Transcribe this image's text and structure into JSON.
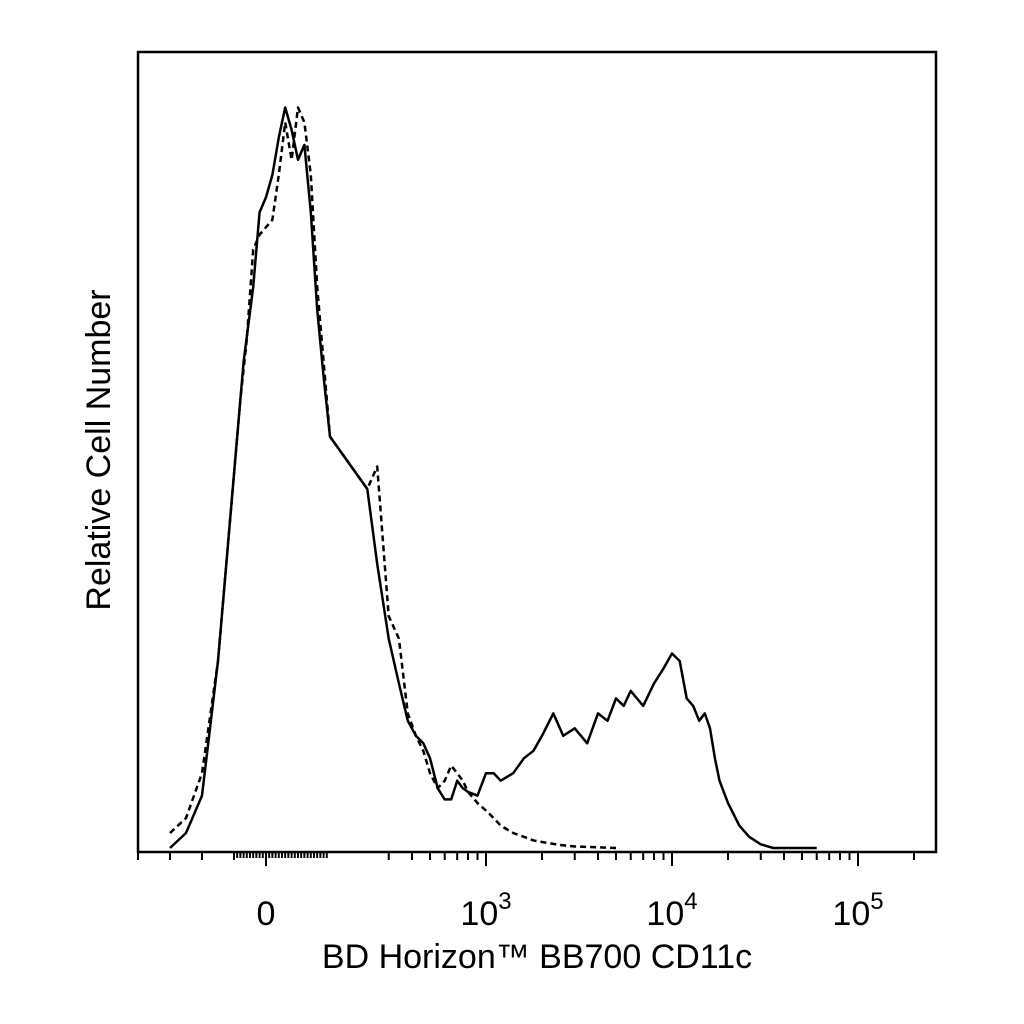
{
  "chart_data": {
    "type": "line",
    "title": "",
    "xlabel": "BD Horizon™ BB700 CD11c",
    "ylabel": "Relative Cell Number",
    "x_scale": "biexponential",
    "xlim": [
      -500,
      200000
    ],
    "ylim": [
      0,
      1
    ],
    "grid": false,
    "legend": "none",
    "x_ticks": [
      {
        "value": 0,
        "base": "0",
        "exp": ""
      },
      {
        "value": 1000,
        "base": "10",
        "exp": "3"
      },
      {
        "value": 10000,
        "base": "10",
        "exp": "4"
      },
      {
        "value": 100000,
        "base": "10",
        "exp": "5"
      }
    ],
    "series": [
      {
        "style": "solid",
        "color": "#000000",
        "x": [
          -300,
          -250,
          -200,
          -150,
          -100,
          -70,
          -40,
          -20,
          0,
          20,
          40,
          60,
          80,
          100,
          120,
          140,
          160,
          180,
          200,
          230,
          260,
          300,
          340,
          380,
          420,
          460,
          500,
          550,
          600,
          650,
          700,
          750,
          800,
          900,
          1000,
          1100,
          1200,
          1400,
          1600,
          1800,
          2000,
          2300,
          2600,
          3000,
          3500,
          4000,
          4500,
          5000,
          5500,
          6000,
          7000,
          8000,
          9000,
          10000,
          11000,
          12000,
          13000,
          14000,
          15000,
          16000,
          17000,
          18000,
          20000,
          23000,
          26000,
          30000,
          35000,
          40000,
          50000,
          60000
        ],
        "y": [
          0,
          0.02,
          0.07,
          0.25,
          0.5,
          0.65,
          0.75,
          0.85,
          0.87,
          0.9,
          0.95,
          0.99,
          0.96,
          0.92,
          0.94,
          0.85,
          0.72,
          0.63,
          0.55,
          0.48,
          0.38,
          0.28,
          0.22,
          0.17,
          0.15,
          0.14,
          0.12,
          0.08,
          0.065,
          0.065,
          0.09,
          0.08,
          0.075,
          0.07,
          0.1,
          0.1,
          0.09,
          0.1,
          0.12,
          0.13,
          0.15,
          0.18,
          0.15,
          0.16,
          0.14,
          0.18,
          0.17,
          0.2,
          0.19,
          0.21,
          0.19,
          0.22,
          0.24,
          0.26,
          0.25,
          0.2,
          0.19,
          0.17,
          0.18,
          0.16,
          0.12,
          0.09,
          0.06,
          0.03,
          0.015,
          0.005,
          0,
          0,
          0,
          0
        ]
      },
      {
        "style": "dashed",
        "color": "#000000",
        "x": [
          -300,
          -250,
          -200,
          -150,
          -100,
          -80,
          -60,
          -40,
          -20,
          0,
          20,
          40,
          60,
          80,
          100,
          120,
          140,
          160,
          180,
          200,
          230,
          260,
          300,
          340,
          380,
          420,
          460,
          500,
          550,
          600,
          650,
          700,
          750,
          800,
          900,
          1000,
          1100,
          1200,
          1400,
          1600,
          1800,
          2000,
          2500,
          3000,
          4000,
          5000
        ],
        "y": [
          0.02,
          0.04,
          0.1,
          0.25,
          0.5,
          0.6,
          0.68,
          0.8,
          0.82,
          0.83,
          0.84,
          0.9,
          0.97,
          0.92,
          0.99,
          0.97,
          0.9,
          0.75,
          0.65,
          0.55,
          0.48,
          0.51,
          0.31,
          0.28,
          0.18,
          0.15,
          0.13,
          0.1,
          0.08,
          0.09,
          0.11,
          0.1,
          0.09,
          0.075,
          0.06,
          0.05,
          0.04,
          0.03,
          0.02,
          0.015,
          0.01,
          0.008,
          0.004,
          0.002,
          0.001,
          0
        ]
      }
    ]
  }
}
